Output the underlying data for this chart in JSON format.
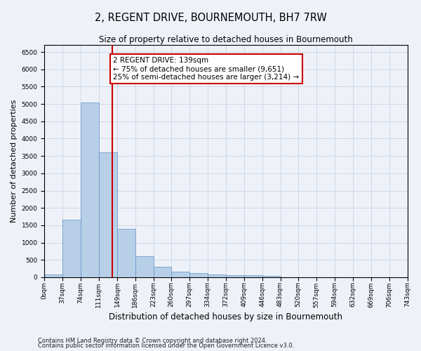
{
  "title": "2, REGENT DRIVE, BOURNEMOUTH, BH7 7RW",
  "subtitle": "Size of property relative to detached houses in Bournemouth",
  "xlabel": "Distribution of detached houses by size in Bournemouth",
  "ylabel": "Number of detached properties",
  "footnote1": "Contains HM Land Registry data © Crown copyright and database right 2024.",
  "footnote2": "Contains public sector information licensed under the Open Government Licence v3.0.",
  "bar_edges": [
    0,
    37,
    74,
    111,
    149,
    186,
    223,
    260,
    297,
    334,
    372,
    409,
    446,
    483,
    520,
    557,
    594,
    632,
    669,
    706,
    743
  ],
  "bar_heights": [
    75,
    1650,
    5050,
    3600,
    1400,
    600,
    305,
    160,
    130,
    75,
    50,
    50,
    35,
    0,
    0,
    0,
    0,
    0,
    0,
    0
  ],
  "bar_color": "#b8cfe8",
  "bar_edge_color": "#6090c8",
  "bar_edge_width": 0.5,
  "grid_color": "#c8d4e4",
  "background_color": "#eef2f8",
  "property_line_x": 139,
  "property_line_color": "#cc0000",
  "annotation_line1": "2 REGENT DRIVE: 139sqm",
  "annotation_line2": "← 75% of detached houses are smaller (9,651)",
  "annotation_line3": "25% of semi-detached houses are larger (3,214) →",
  "annotation_box_facecolor": "#ffffff",
  "annotation_box_edgecolor": "#cc0000",
  "ylim_max": 6700,
  "yticks": [
    0,
    500,
    1000,
    1500,
    2000,
    2500,
    3000,
    3500,
    4000,
    4500,
    5000,
    5500,
    6000,
    6500
  ],
  "title_fontsize": 10.5,
  "subtitle_fontsize": 8.5,
  "ylabel_fontsize": 8,
  "xlabel_fontsize": 8.5,
  "tick_fontsize": 6.5,
  "annotation_fontsize": 7.5,
  "footnote_fontsize": 6
}
